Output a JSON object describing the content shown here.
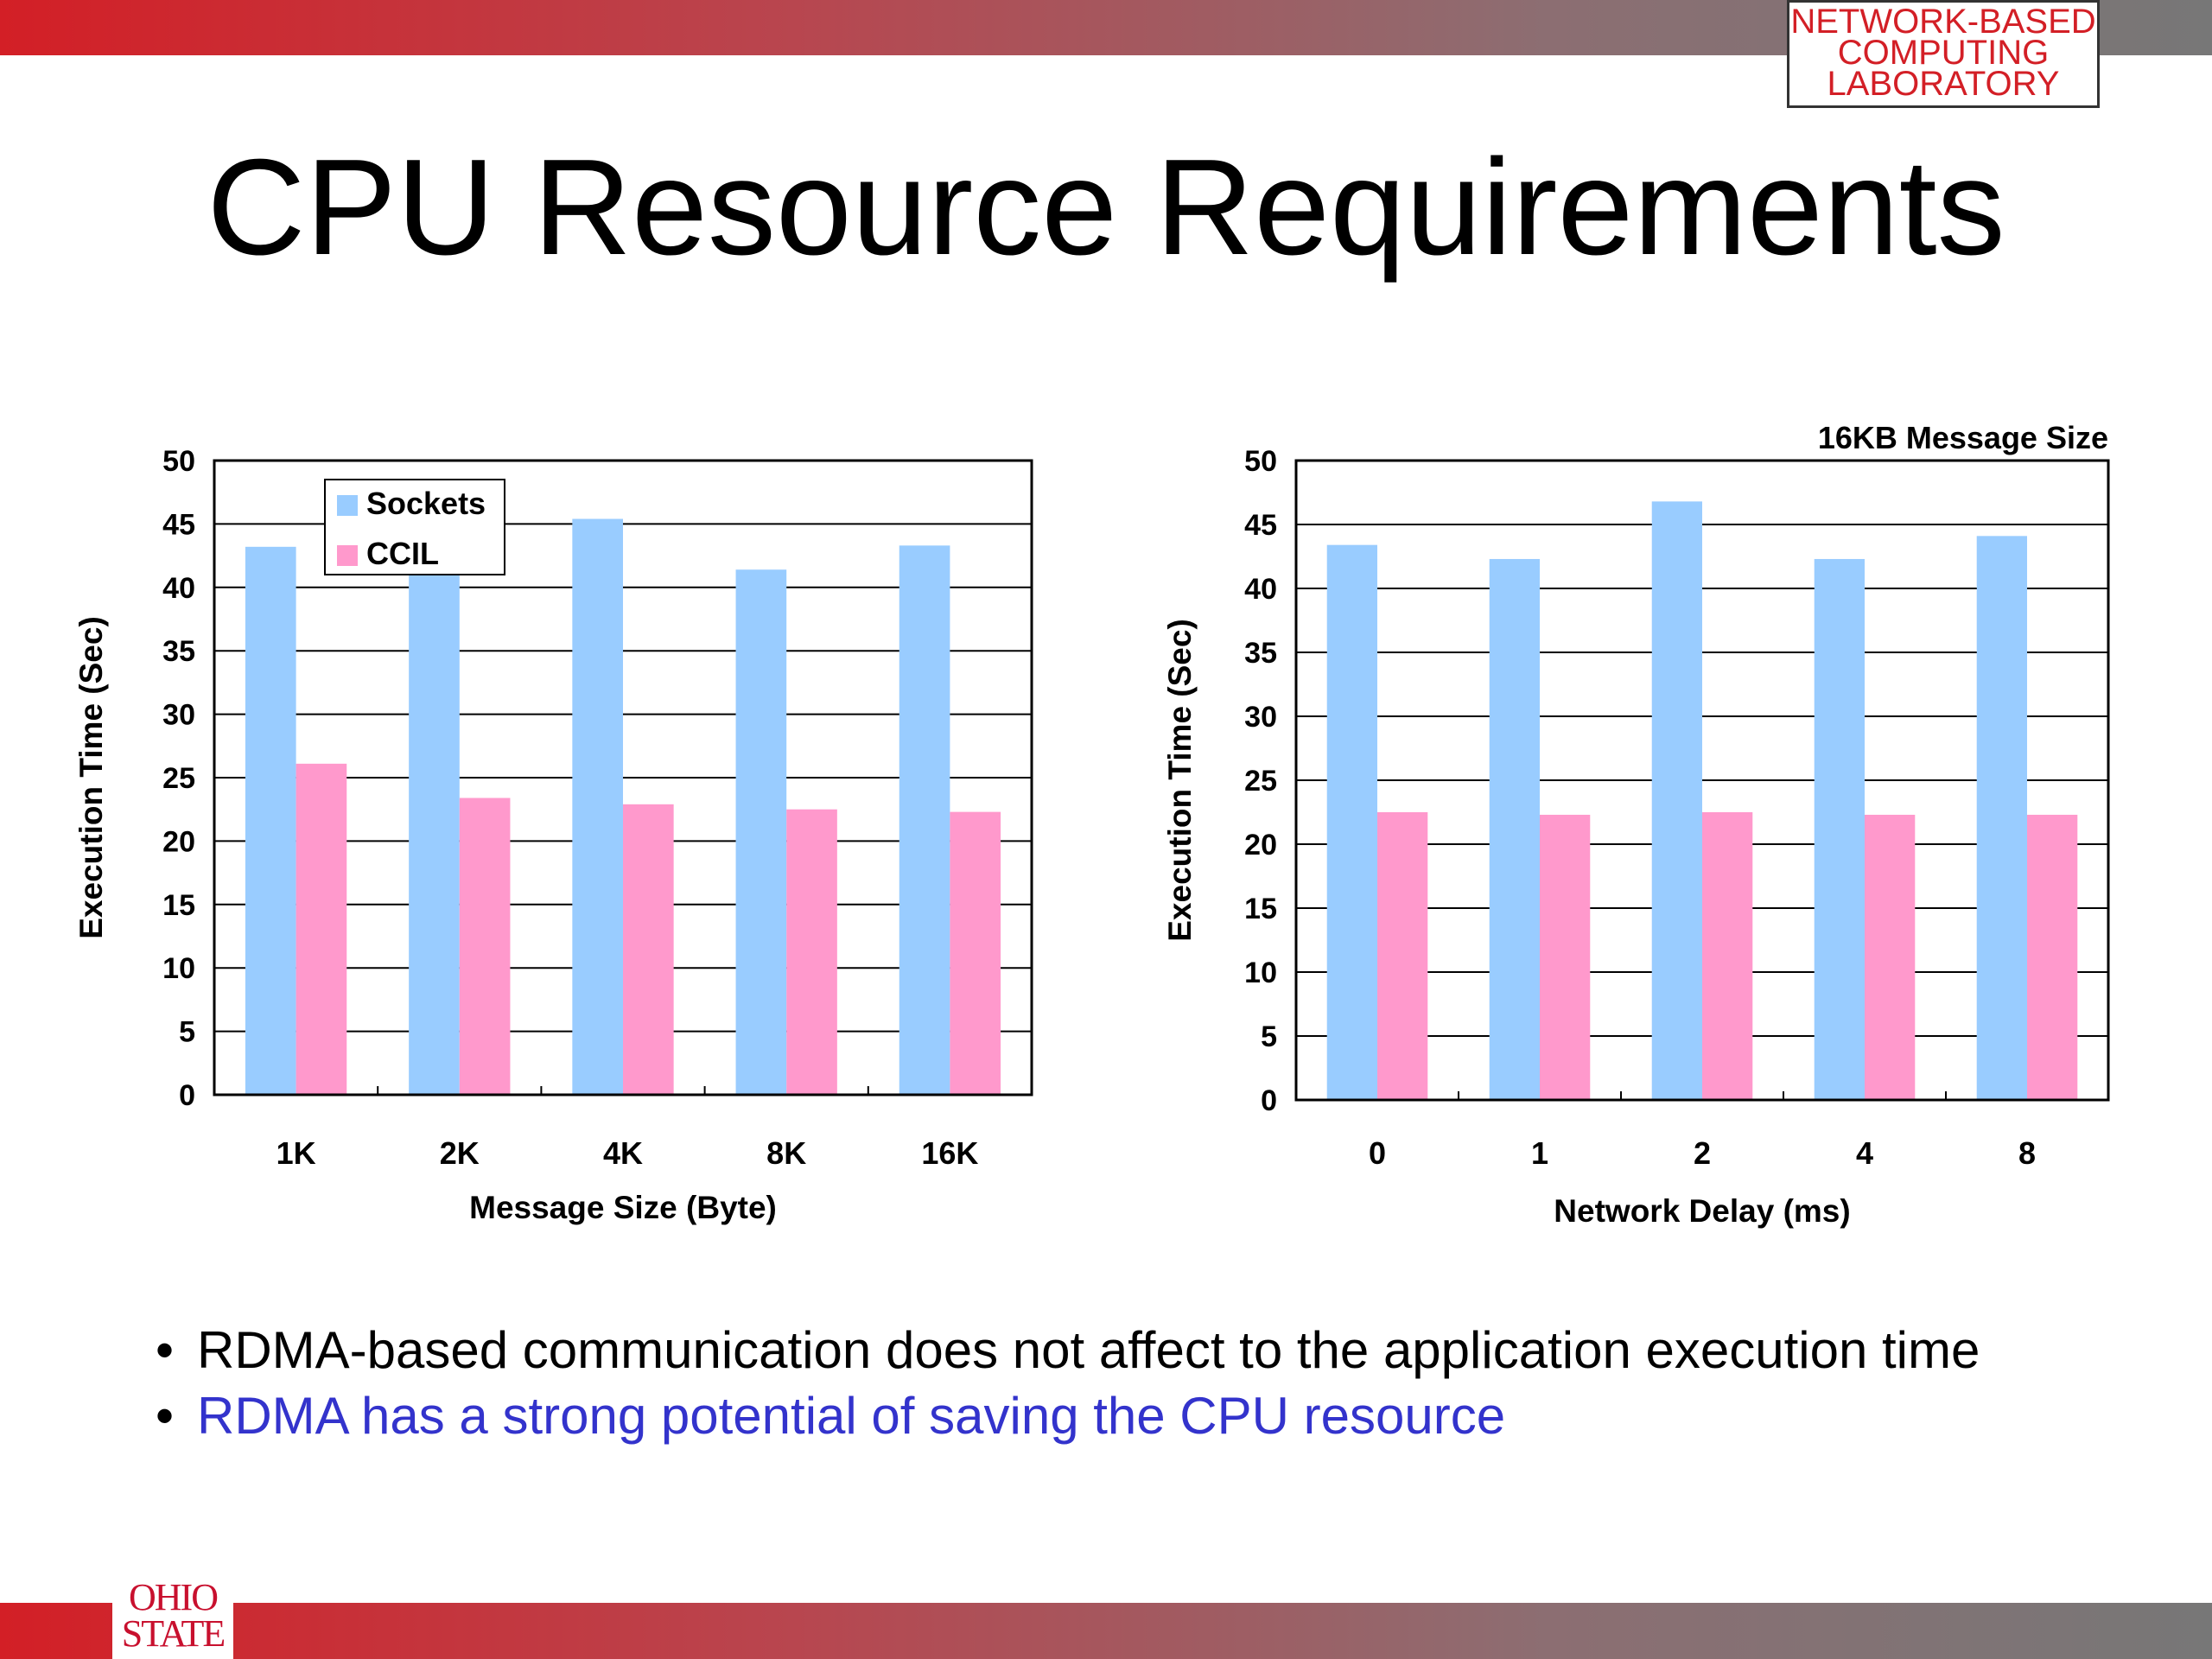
{
  "slide": {
    "title": "CPU Resource Requirements",
    "lab_logo": [
      "NETWORK-BASED",
      "COMPUTING",
      "LABORATORY"
    ],
    "osu_logo": [
      "OHIO",
      "STATE"
    ],
    "bullets": [
      {
        "text": "RDMA-based communication does not affect to the application execution time",
        "color": "#000000"
      },
      {
        "text": "RDMA has a strong potential of saving the CPU resource",
        "color": "#3333cc"
      }
    ]
  },
  "colors": {
    "sockets": "#99ccff",
    "ccil": "#ff99cc",
    "brand_red": "#d31f26"
  },
  "chart_data": [
    {
      "type": "bar",
      "title": "",
      "xlabel": "Message Size (Byte)",
      "ylabel": "Execution Time (Sec)",
      "categories": [
        "1K",
        "2K",
        "4K",
        "8K",
        "16K"
      ],
      "ylim": [
        0,
        50
      ],
      "yticks": [
        0,
        5,
        10,
        15,
        20,
        25,
        30,
        35,
        40,
        45,
        50
      ],
      "grid": true,
      "legend": "top-left",
      "series": [
        {
          "name": "Sockets",
          "values": [
            43.2,
            41.7,
            45.4,
            41.4,
            43.3
          ]
        },
        {
          "name": "CCIL",
          "values": [
            26.1,
            23.4,
            22.9,
            22.5,
            22.3
          ]
        }
      ]
    },
    {
      "type": "bar",
      "title": "16KB Message Size",
      "xlabel": "Network Delay (ms)",
      "ylabel": "Execution Time (Sec)",
      "categories": [
        "0",
        "1",
        "2",
        "4",
        "8"
      ],
      "ylim": [
        0,
        50
      ],
      "yticks": [
        0,
        5,
        10,
        15,
        20,
        25,
        30,
        35,
        40,
        45,
        50
      ],
      "grid": true,
      "legend": "none",
      "series": [
        {
          "name": "Sockets",
          "values": [
            43.4,
            42.3,
            46.8,
            42.3,
            44.1
          ]
        },
        {
          "name": "CCIL",
          "values": [
            22.5,
            22.3,
            22.5,
            22.3,
            22.3
          ]
        }
      ]
    }
  ]
}
